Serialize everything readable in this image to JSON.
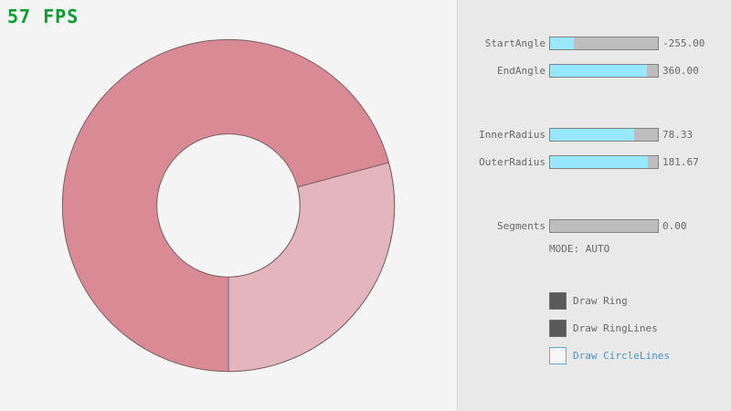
{
  "fps": {
    "text": "57 FPS",
    "color": "#009e2f"
  },
  "panel": {
    "sliders": [
      {
        "label": "StartAngle",
        "value": "-255.00",
        "fill_pct": 21.7
      },
      {
        "label": "EndAngle",
        "value": "360.00",
        "fill_pct": 90.0
      },
      {
        "label": "InnerRadius",
        "value": "78.33",
        "fill_pct": 78.3
      },
      {
        "label": "OuterRadius",
        "value": "181.67",
        "fill_pct": 90.8
      },
      {
        "label": "Segments",
        "value": "0.00",
        "fill_pct": 0
      }
    ],
    "mode_label": "MODE: AUTO",
    "checkboxes": [
      {
        "label": "Draw Ring",
        "checked": true
      },
      {
        "label": "Draw RingLines",
        "checked": true
      },
      {
        "label": "Draw CircleLines",
        "checked": false
      }
    ],
    "accent_color": "#97e8ff"
  },
  "ring": {
    "dark_color": "#d98a94",
    "light_color": "#e4b5bc",
    "line_color": "#756064"
  }
}
